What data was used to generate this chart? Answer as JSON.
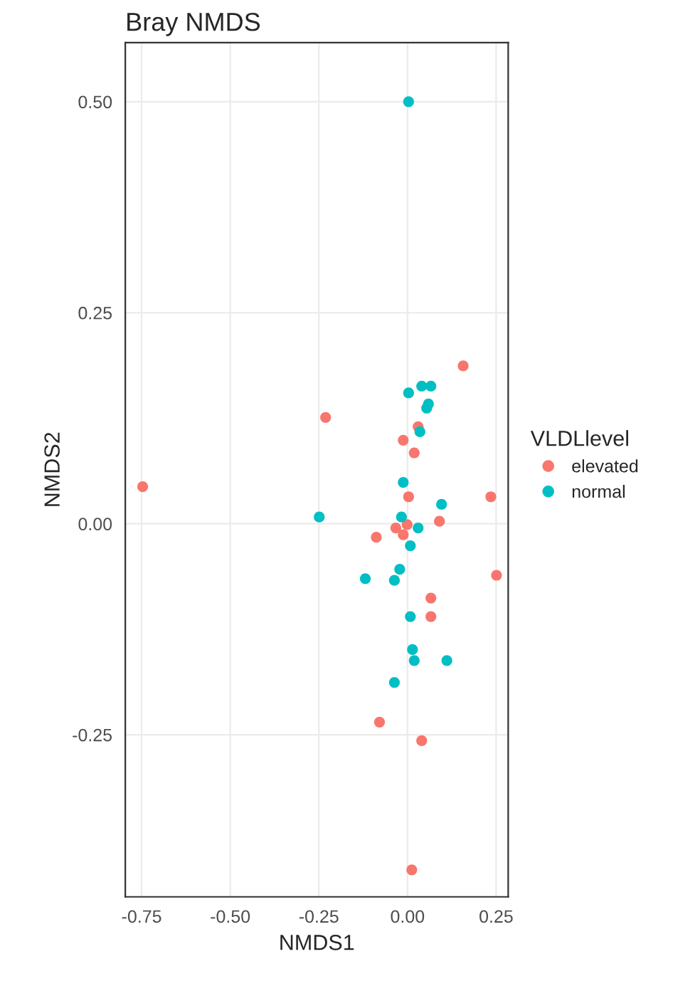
{
  "chart_data": {
    "type": "scatter",
    "title": "Bray NMDS",
    "xlabel": "NMDS1",
    "ylabel": "NMDS2",
    "legend_title": "VLDLlevel",
    "xlim": [
      -0.796,
      0.284
    ],
    "ylim": [
      -0.442,
      0.57
    ],
    "xticks": [
      {
        "value": -0.75,
        "label": "-0.75"
      },
      {
        "value": -0.5,
        "label": "-0.50"
      },
      {
        "value": -0.25,
        "label": "-0.25"
      },
      {
        "value": 0,
        "label": "0.00"
      },
      {
        "value": 0.25,
        "label": "0.25"
      }
    ],
    "yticks": [
      {
        "value": -0.25,
        "label": "-0.25"
      },
      {
        "value": 0,
        "label": "0.00"
      },
      {
        "value": 0.25,
        "label": "0.25"
      },
      {
        "value": 0.5,
        "label": "0.50"
      }
    ],
    "grid": true,
    "legend": "right",
    "marker": "circle",
    "series": [
      {
        "name": "elevated",
        "color": "#f8766d",
        "x": [
          0.157,
          -0.231,
          0.03,
          -0.012,
          0.019,
          0.003,
          0.235,
          0.09,
          -0.033,
          -0.001,
          -0.012,
          -0.088,
          0.004,
          0.251,
          0.066,
          0.066,
          -0.079,
          0.04,
          0.012,
          -0.747
        ],
        "values": [
          0.187,
          0.126,
          0.115,
          0.099,
          0.084,
          0.032,
          0.032,
          0.003,
          -0.005,
          -0.001,
          -0.013,
          -0.016,
          null,
          -0.061,
          -0.088,
          -0.11,
          -0.235,
          -0.257,
          -0.41,
          0.044
        ]
      },
      {
        "name": "normal",
        "color": "#00bfc4",
        "x": [
          0.003,
          0.003,
          0.04,
          0.066,
          0.059,
          0.054,
          0.035,
          -0.012,
          0.096,
          -0.249,
          -0.017,
          0.03,
          0.008,
          -0.022,
          -0.119,
          -0.037,
          0.008,
          0.014,
          0.019,
          0.111,
          -0.037
        ],
        "values": [
          0.5,
          0.155,
          0.163,
          0.163,
          0.142,
          0.137,
          0.109,
          0.049,
          0.023,
          0.008,
          0.008,
          -0.005,
          -0.026,
          -0.054,
          -0.065,
          -0.067,
          -0.11,
          -0.149,
          -0.162,
          -0.162,
          -0.188
        ]
      }
    ]
  }
}
